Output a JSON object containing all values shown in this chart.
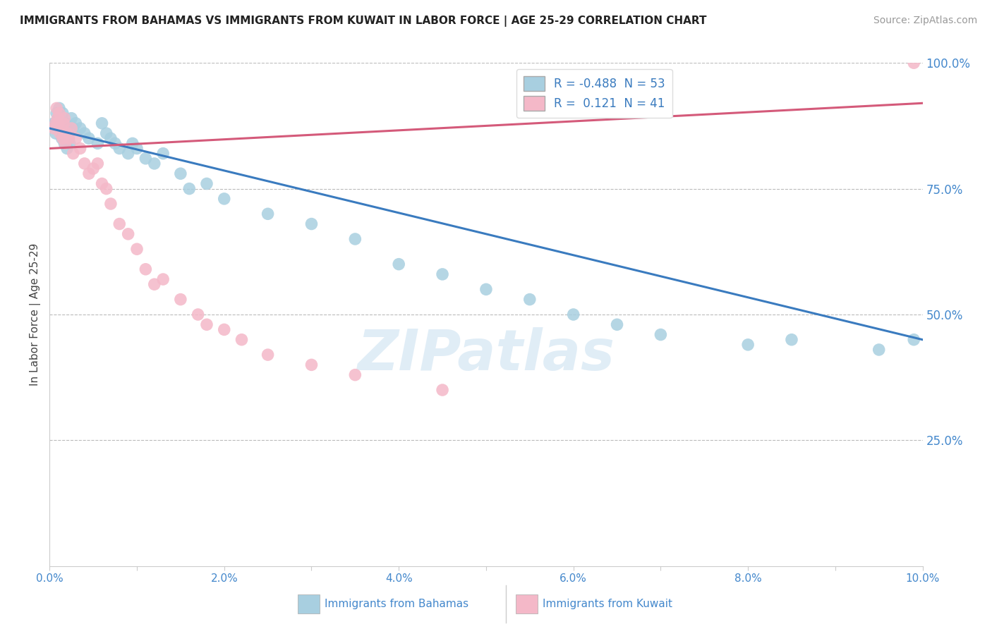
{
  "title": "IMMIGRANTS FROM BAHAMAS VS IMMIGRANTS FROM KUWAIT IN LABOR FORCE | AGE 25-29 CORRELATION CHART",
  "source": "Source: ZipAtlas.com",
  "ylabel": "In Labor Force | Age 25-29",
  "xlim": [
    0.0,
    10.0
  ],
  "ylim": [
    0.0,
    100.0
  ],
  "xtick_labels": [
    "0.0%",
    "",
    "2.0%",
    "",
    "4.0%",
    "",
    "6.0%",
    "",
    "8.0%",
    "",
    "10.0%"
  ],
  "xtick_vals": [
    0.0,
    1.0,
    2.0,
    3.0,
    4.0,
    5.0,
    6.0,
    7.0,
    8.0,
    9.0,
    10.0
  ],
  "ytick_labels": [
    "25.0%",
    "50.0%",
    "75.0%",
    "100.0%"
  ],
  "ytick_vals": [
    25.0,
    50.0,
    75.0,
    100.0
  ],
  "blue_R": -0.488,
  "blue_N": 53,
  "pink_R": 0.121,
  "pink_N": 41,
  "blue_color": "#a8cfe0",
  "pink_color": "#f4b8c8",
  "blue_line_color": "#3a7bbf",
  "pink_line_color": "#d45a7a",
  "legend_label_blue": "Immigrants from Bahamas",
  "legend_label_pink": "Immigrants from Kuwait",
  "watermark": "ZIPatlas",
  "blue_scatter_x": [
    0.05,
    0.07,
    0.08,
    0.1,
    0.11,
    0.12,
    0.13,
    0.14,
    0.15,
    0.16,
    0.17,
    0.18,
    0.19,
    0.2,
    0.21,
    0.22,
    0.23,
    0.25,
    0.27,
    0.3,
    0.35,
    0.4,
    0.45,
    0.55,
    0.6,
    0.65,
    0.7,
    0.75,
    0.8,
    0.9,
    0.95,
    1.0,
    1.1,
    1.2,
    1.3,
    1.5,
    1.6,
    1.8,
    2.0,
    2.5,
    3.0,
    3.5,
    4.0,
    4.5,
    5.0,
    5.5,
    6.0,
    6.5,
    7.0,
    8.0,
    8.5,
    9.5,
    9.9
  ],
  "blue_scatter_y": [
    88,
    86,
    90,
    89,
    91,
    87,
    88,
    85,
    90,
    86,
    84,
    88,
    87,
    83,
    86,
    85,
    84,
    89,
    87,
    88,
    87,
    86,
    85,
    84,
    88,
    86,
    85,
    84,
    83,
    82,
    84,
    83,
    81,
    80,
    82,
    78,
    75,
    76,
    73,
    70,
    68,
    65,
    60,
    58,
    55,
    53,
    50,
    48,
    46,
    44,
    45,
    43,
    45
  ],
  "pink_scatter_x": [
    0.05,
    0.07,
    0.08,
    0.09,
    0.1,
    0.11,
    0.12,
    0.13,
    0.15,
    0.16,
    0.17,
    0.18,
    0.2,
    0.22,
    0.25,
    0.27,
    0.3,
    0.35,
    0.4,
    0.45,
    0.5,
    0.55,
    0.6,
    0.65,
    0.7,
    0.8,
    0.9,
    1.0,
    1.1,
    1.2,
    1.3,
    1.5,
    1.7,
    1.8,
    2.0,
    2.2,
    2.5,
    3.0,
    3.5,
    4.5,
    9.9
  ],
  "pink_scatter_y": [
    87,
    88,
    91,
    89,
    88,
    90,
    86,
    87,
    85,
    88,
    89,
    84,
    86,
    85,
    87,
    82,
    85,
    83,
    80,
    78,
    79,
    80,
    76,
    75,
    72,
    68,
    66,
    63,
    59,
    56,
    57,
    53,
    50,
    48,
    47,
    45,
    42,
    40,
    38,
    35,
    100
  ],
  "blue_trend_x": [
    0.0,
    10.0
  ],
  "blue_trend_y": [
    87.0,
    45.0
  ],
  "pink_trend_x": [
    0.0,
    10.0
  ],
  "pink_trend_y": [
    83.0,
    92.0
  ]
}
